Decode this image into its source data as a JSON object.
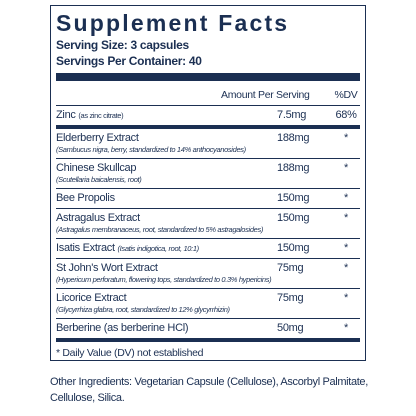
{
  "header": {
    "title": "Supplement Facts",
    "serving_size": "Serving Size: 3 capsules",
    "servings_per_container": "Servings Per Container: 40"
  },
  "table": {
    "columns": [
      "Amount Per Serving",
      "%DV"
    ],
    "rows": [
      {
        "name": "Zinc",
        "detail": "(as zinc citrate)",
        "amount": "7.5mg",
        "dv": "68%"
      },
      {
        "name": "Elderberry Extract",
        "detail": "(Sambucus nigra, berry, standardized to 14% anthocyanosides)",
        "amount": "188mg",
        "dv": "*"
      },
      {
        "name": "Chinese Skullcap",
        "detail": "(Scutellaria baicalensis, root)",
        "amount": "188mg",
        "dv": "*"
      },
      {
        "name": "Bee Propolis",
        "amount": "150mg",
        "dv": "*"
      },
      {
        "name": "Astragalus Extract",
        "detail": "(Astragalus membranaceus, root, standardized to 5% astragalosides)",
        "amount": "150mg",
        "dv": "*"
      },
      {
        "name": "Isatis Extract",
        "detail": "(Isatis indigotica, root, 10:1)",
        "amount": "150mg",
        "dv": "*"
      },
      {
        "name": "St John's Wort Extract",
        "detail": "(Hypericum perforatum, flowering tops, standardized to 0.3% hypericins)",
        "amount": "75mg",
        "dv": "*"
      },
      {
        "name": "Licorice Extract",
        "detail": "(Glycyrrhiza glabra, root, standardized to 12% glycyrrhizin)",
        "amount": "75mg",
        "dv": "*"
      },
      {
        "name": "Berberine (as berberine HCl)",
        "amount": "50mg",
        "dv": "*"
      }
    ]
  },
  "footnote": "* Daily Value (DV) not established",
  "other_ingredients": "Other Ingredients: Vegetarian Capsule (Cellulose), Ascorbyl Palmitate, Cellulose, Silica."
}
